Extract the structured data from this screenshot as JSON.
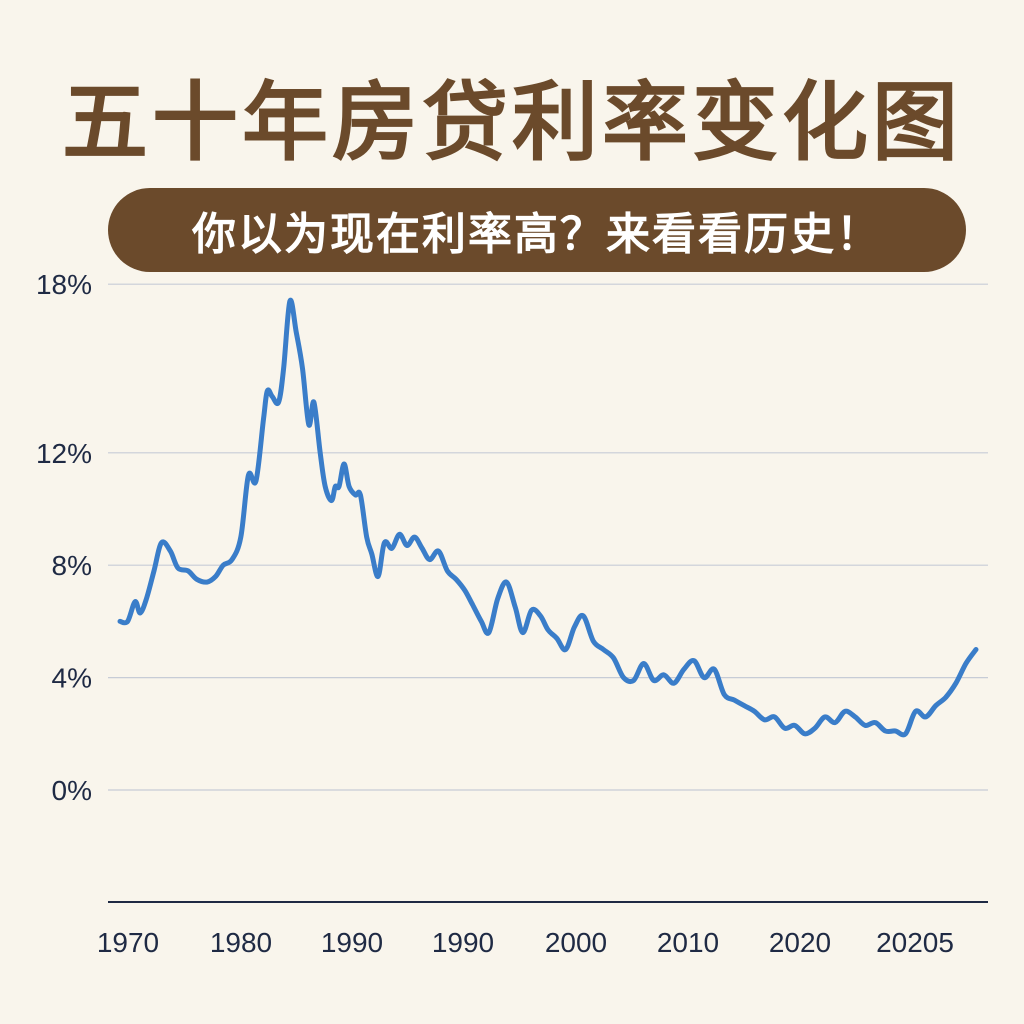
{
  "header": {
    "title": "五十年房贷利率变化图",
    "subtitle": "你以为现在利率高？来看看历史！"
  },
  "colors": {
    "background": "#f9f5ec",
    "brand_brown": "#6b4a2b",
    "line": "#3a7dc9",
    "grid": "#c7ccd6",
    "axis": "#1f2a44"
  },
  "chart_data": {
    "type": "line",
    "title": "",
    "xlabel": "",
    "ylabel": "",
    "ylim": [
      0,
      18
    ],
    "grid": true,
    "y_ticks": [
      {
        "value": 18,
        "label": "18%"
      },
      {
        "value": 12,
        "label": "12%"
      },
      {
        "value": 8,
        "label": "8%"
      },
      {
        "value": 4,
        "label": "4%"
      },
      {
        "value": 0,
        "label": "0%"
      }
    ],
    "x_tick_labels": [
      "1970",
      "1980",
      "1990",
      "1990",
      "2000",
      "2010",
      "2020",
      "20205"
    ],
    "series": [
      {
        "x": [
          1970,
          1970.6,
          1971.2,
          1971.6,
          1972.1,
          1972.7,
          1973.3,
          1974.0,
          1974.6,
          1975.4,
          1976.1,
          1976.9,
          1977.6,
          1978.2,
          1978.9,
          1979.6,
          1980.2,
          1980.8,
          1981.4,
          1981.7,
          1982.1,
          1982.6,
          1983.0,
          1983.5,
          1984.0,
          1984.5,
          1985.0,
          1985.4,
          1985.9,
          1986.3,
          1986.8,
          1987.1,
          1987.4,
          1987.8,
          1988.2,
          1988.7,
          1989.1,
          1989.6,
          1990.0,
          1990.5,
          1991.0,
          1991.6,
          1992.2,
          1992.8,
          1993.4,
          1994.0,
          1994.6,
          1995.3,
          1996.0,
          1996.7,
          1997.4,
          1998.0,
          1998.7,
          1999.3,
          2000.0,
          2000.7,
          2001.4,
          2002.0,
          2002.7,
          2003.4,
          2004.0,
          2004.7,
          2005.4,
          2006.1,
          2006.8,
          2007.6,
          2008.4,
          2009.2,
          2010.0,
          2010.8,
          2011.6,
          2012.4,
          2013.2,
          2014.0,
          2014.8,
          2015.6,
          2016.4,
          2017.2,
          2018.0,
          2018.8,
          2019.6,
          2020.4,
          2021.2,
          2022.0,
          2022.8,
          2023.6,
          2024.4,
          2025.2,
          2026.0,
          2026.8,
          2027.6,
          2028.4,
          2029.2,
          2030.0,
          2030.8,
          2031.6,
          2032.4,
          2033.2,
          2034.0,
          2034.8,
          2035.6,
          2036.4,
          2037.2,
          2038.0
        ],
        "values": [
          6.0,
          6.0,
          6.7,
          6.3,
          6.8,
          7.8,
          8.8,
          8.5,
          7.9,
          7.8,
          7.5,
          7.4,
          7.6,
          8.0,
          8.2,
          9.0,
          11.2,
          11.0,
          13.2,
          14.2,
          14.0,
          13.8,
          15.0,
          17.4,
          16.3,
          15.0,
          13.0,
          13.8,
          12.0,
          10.8,
          10.3,
          10.8,
          10.8,
          11.6,
          10.8,
          10.5,
          10.5,
          9.0,
          8.4,
          7.6,
          8.8,
          8.6,
          9.1,
          8.7,
          9.0,
          8.6,
          8.2,
          8.5,
          7.8,
          7.5,
          7.1,
          6.6,
          6.0,
          5.6,
          6.8,
          7.4,
          6.5,
          5.6,
          6.4,
          6.2,
          5.7,
          5.4,
          5.0,
          5.8,
          6.2,
          5.3,
          5.0,
          4.7,
          4.0,
          3.9,
          4.5,
          3.9,
          4.1,
          3.8,
          4.3,
          4.6,
          4.0,
          4.3,
          3.4,
          3.2,
          3.0,
          2.8,
          2.5,
          2.6,
          2.2,
          2.3,
          2.0,
          2.2,
          2.6,
          2.4,
          2.8,
          2.6,
          2.3,
          2.4,
          2.1,
          2.1,
          2.0,
          2.8,
          2.6,
          3.0,
          3.3,
          3.8,
          4.5,
          5.0
        ]
      }
    ]
  }
}
